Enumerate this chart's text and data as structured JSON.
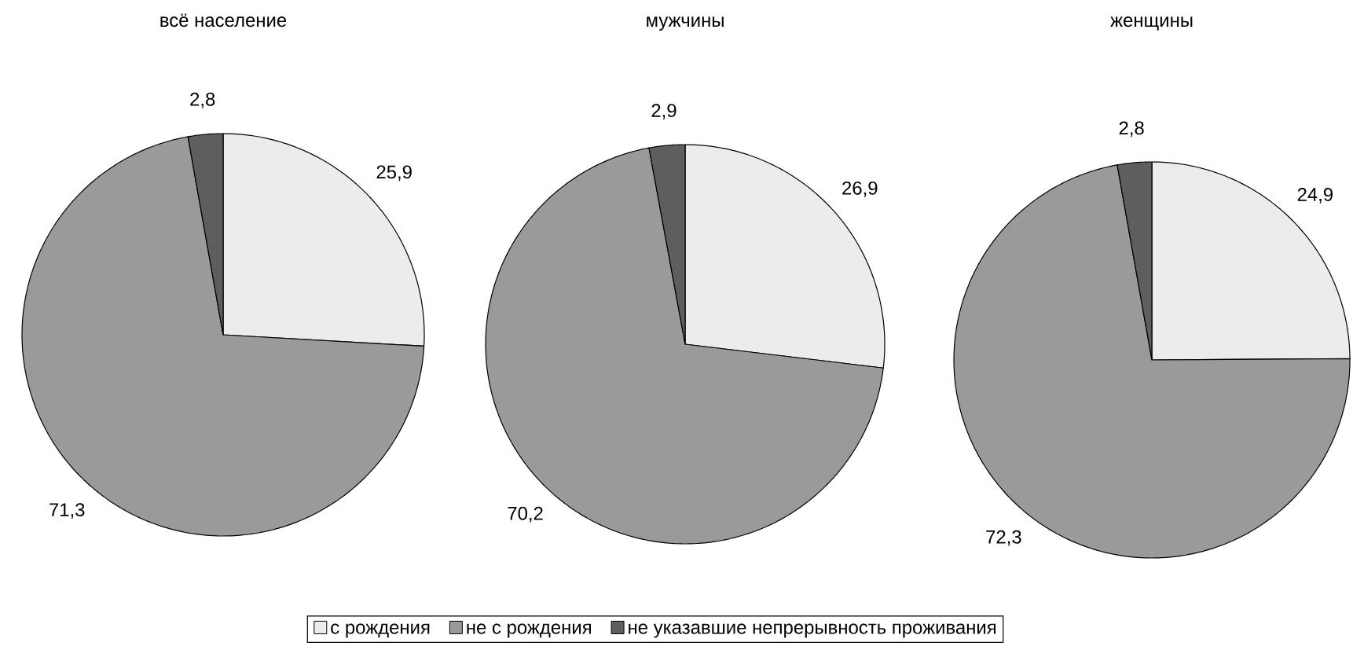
{
  "chart_data": [
    {
      "type": "pie",
      "title": "всё население",
      "categories": [
        "с рождения",
        "не с рождения",
        "не указавшие непрерывность проживания"
      ],
      "values": [
        25.9,
        71.3,
        2.8
      ],
      "value_labels": [
        "25,9",
        "71,3",
        "2,8"
      ],
      "colors": [
        "#ececec",
        "#9a9a9a",
        "#5e5e5e"
      ],
      "legend": "bottom"
    },
    {
      "type": "pie",
      "title": "мужчины",
      "values": [
        26.9,
        70.2,
        2.9
      ],
      "value_labels": [
        "26,9",
        "70,2",
        "2,9"
      ],
      "colors": [
        "#ececec",
        "#9a9a9a",
        "#5e5e5e"
      ]
    },
    {
      "type": "pie",
      "title": "женщины",
      "values": [
        24.9,
        72.3,
        2.8
      ],
      "value_labels": [
        "24,9",
        "72,3",
        "2,8"
      ],
      "colors": [
        "#ececec",
        "#9a9a9a",
        "#5e5e5e"
      ]
    }
  ]
}
